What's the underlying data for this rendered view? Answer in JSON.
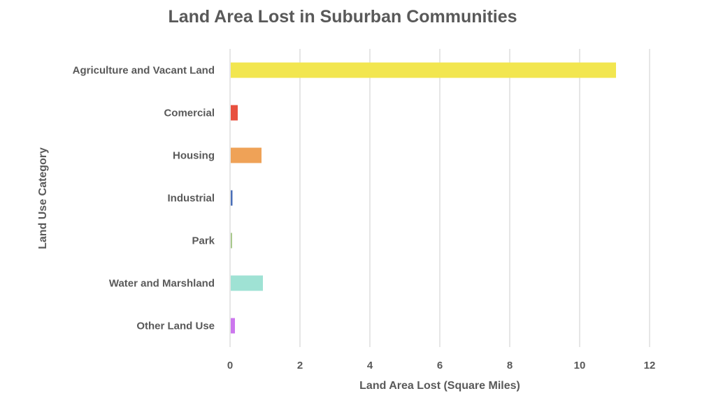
{
  "chart_data": {
    "type": "bar",
    "orientation": "horizontal",
    "title": "Land Area Lost in Suburban Communities",
    "xlabel": "Land Area Lost (Square Miles)",
    "ylabel": "Land Use Category",
    "categories": [
      "Agriculture and Vacant Land",
      "Comercial",
      "Housing",
      "Industrial",
      "Park",
      "Water and Marshland",
      "Other Land Use"
    ],
    "values": [
      11.02,
      0.2,
      0.88,
      0.05,
      0.04,
      0.92,
      0.12
    ],
    "colors": [
      "#F2E64F",
      "#E8503F",
      "#EFA257",
      "#4A6FB8",
      "#A9C98D",
      "#9FE2D4",
      "#CC77EE"
    ],
    "xlim": [
      0,
      12
    ],
    "xticks": [
      "0",
      "2",
      "4",
      "6",
      "8",
      "10",
      "12"
    ],
    "grid": "vertical",
    "legend": "none"
  }
}
